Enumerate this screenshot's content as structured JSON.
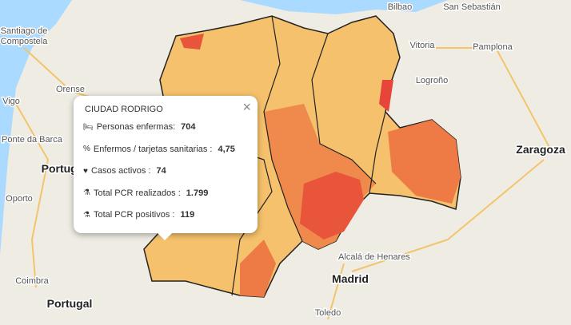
{
  "map": {
    "labels": [
      "Santiago de",
      "Compostela",
      "Orense",
      "Vigo",
      "Ponte da Barca",
      "Portugal",
      "Oporto",
      "Coimbra",
      "Portugal",
      "Bilbao",
      "San Sebastián",
      "Vitoria",
      "Pamplona",
      "Logroño",
      "Zaragoza",
      "Alcalá de Henares",
      "Madrid",
      "Toledo"
    ],
    "popup": {
      "title": "CIUDAD RODRIGO",
      "close": "×",
      "rows": [
        {
          "label": "Personas enfermas:",
          "value": "704"
        },
        {
          "label": "Enfermos / tarjetas sanitarias :",
          "value": "4,75"
        },
        {
          "label": "Casos activos :",
          "value": "74"
        },
        {
          "label": "Total PCR realizados :",
          "value": "1.799"
        },
        {
          "label": "Total PCR positivos :",
          "value": "119"
        }
      ]
    }
  }
}
